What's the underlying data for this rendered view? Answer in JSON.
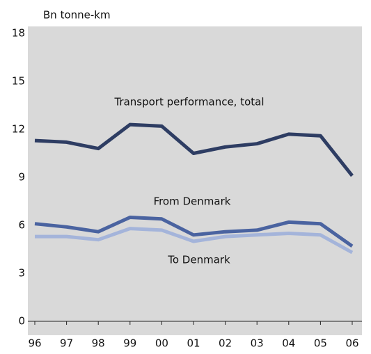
{
  "chart_data": {
    "type": "line",
    "ylabel": "Bn tonne-km",
    "categories": [
      "96",
      "97",
      "98",
      "99",
      "00",
      "01",
      "02",
      "03",
      "04",
      "05",
      "06"
    ],
    "series": [
      {
        "name": "Transport performance, total",
        "color": "#2e3d63",
        "values": [
          11.3,
          11.2,
          10.8,
          12.3,
          12.2,
          10.5,
          10.9,
          11.1,
          11.7,
          11.6,
          9.1
        ]
      },
      {
        "name": "From Denmark",
        "color": "#4a63a0",
        "values": [
          6.1,
          5.9,
          5.6,
          6.5,
          6.4,
          5.4,
          5.6,
          5.7,
          6.2,
          6.1,
          4.7
        ]
      },
      {
        "name": "To Denmark",
        "color": "#a4b4da",
        "values": [
          5.3,
          5.3,
          5.1,
          5.8,
          5.7,
          5.0,
          5.3,
          5.4,
          5.5,
          5.4,
          4.3
        ]
      }
    ],
    "ylim": [
      0,
      18
    ],
    "yticks": [
      0,
      3,
      6,
      9,
      12,
      15,
      18
    ],
    "grid": false
  }
}
